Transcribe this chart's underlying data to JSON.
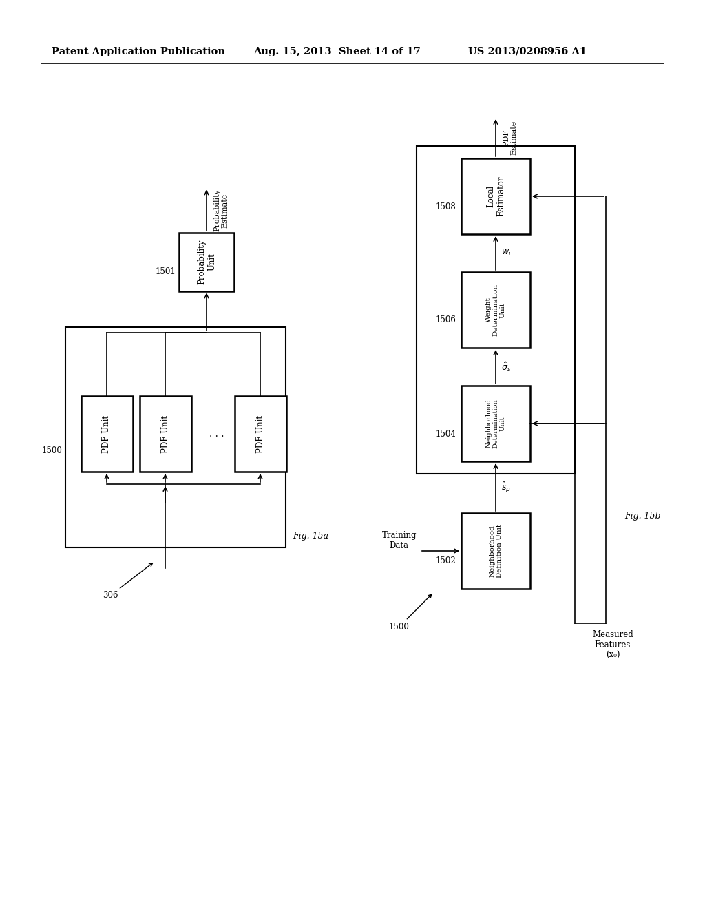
{
  "header_left": "Patent Application Publication",
  "header_mid": "Aug. 15, 2013  Sheet 14 of 17",
  "header_right": "US 2013/0208956 A1",
  "bg_color": "#ffffff"
}
